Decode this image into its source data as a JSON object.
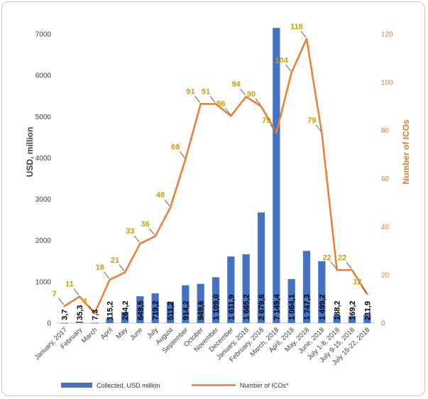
{
  "chart_data": {
    "type": "bar+line",
    "categories": [
      "January, 2017",
      "February",
      "March",
      "April",
      "May",
      "June",
      "July",
      "August",
      "September",
      "October",
      "November",
      "December",
      "January, 2018",
      "February, 2018",
      "March, 2018",
      "April, 2018",
      "May, 2018",
      "June, 2018",
      "July 1-8, 2018",
      "July 9-15, 2018",
      "July 15-22, 2018"
    ],
    "series": [
      {
        "name": "Collected, USD million",
        "kind": "bar",
        "axis": "left",
        "color": "#4472c4",
        "values": [
          3.7,
          35.3,
          7.3,
          115.2,
          264.2,
          649.5,
          719.2,
          511.2,
          914.2,
          949.6,
          1109.0,
          1611.9,
          1665.2,
          2679.6,
          7149.4,
          1064.1,
          1747.3,
          1499.2,
          188.2,
          169.2,
          211.9
        ],
        "labels": [
          "3,7",
          "35,3",
          "7,3",
          "115,2",
          "264,2",
          "649,5",
          "719,2",
          "511,2",
          "914,2",
          "949,6",
          "1 109,0",
          "1 611,9",
          "1 665,2",
          "2 679,6",
          "7 149,4",
          "1 064,1",
          "1 747,3",
          "1 499,2",
          "188,2",
          "169,2",
          "211,9"
        ]
      },
      {
        "name": "Number of ICOs*",
        "kind": "line",
        "axis": "right",
        "color": "#ed7d31",
        "values": [
          7,
          11,
          4,
          18,
          21,
          33,
          36,
          48,
          68,
          91,
          91,
          86,
          94,
          90,
          79,
          104,
          118,
          79,
          22,
          22,
          12
        ],
        "labels": [
          "7",
          "11",
          "4",
          "18",
          "21",
          "33",
          "36",
          "48",
          "68",
          "91",
          "91",
          "86",
          "94",
          "90",
          "79",
          "104",
          "118",
          "79",
          "22",
          "22",
          "12"
        ]
      }
    ],
    "ylabel_left": "USD, million",
    "ylabel_right": "Number of ICOs",
    "ylim_left": [
      0,
      7000
    ],
    "ylim_right": [
      0,
      120
    ],
    "yticks_left": [
      "0",
      "1000",
      "2000",
      "3000",
      "4000",
      "5000",
      "6000",
      "7000"
    ],
    "yticks_right": [
      "0",
      "20",
      "40",
      "60",
      "80",
      "100",
      "120"
    ],
    "grid": false,
    "legend_position": "bottom",
    "label_color": "#c9a000",
    "right_axis_color": "#e07b2c"
  }
}
